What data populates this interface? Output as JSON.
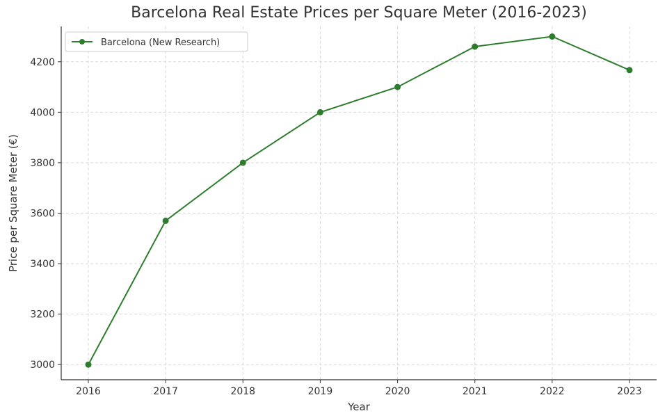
{
  "chart_data": {
    "type": "line",
    "title": "Barcelona Real Estate Prices per Square Meter (2016-2023)",
    "xlabel": "Year",
    "ylabel": "Price per Square Meter (€)",
    "categories": [
      "2016",
      "2017",
      "2018",
      "2019",
      "2020",
      "2021",
      "2022",
      "2023"
    ],
    "series": [
      {
        "name": "Barcelona (New Research)",
        "values": [
          3000,
          3570,
          3800,
          4000,
          4100,
          4260,
          4300,
          4167
        ],
        "color": "#2e7d2e"
      }
    ],
    "ylim": [
      2940,
      4340
    ],
    "yticks": [
      3000,
      3200,
      3400,
      3600,
      3800,
      4000,
      4200
    ],
    "grid": true,
    "legend_position": "top-left"
  }
}
